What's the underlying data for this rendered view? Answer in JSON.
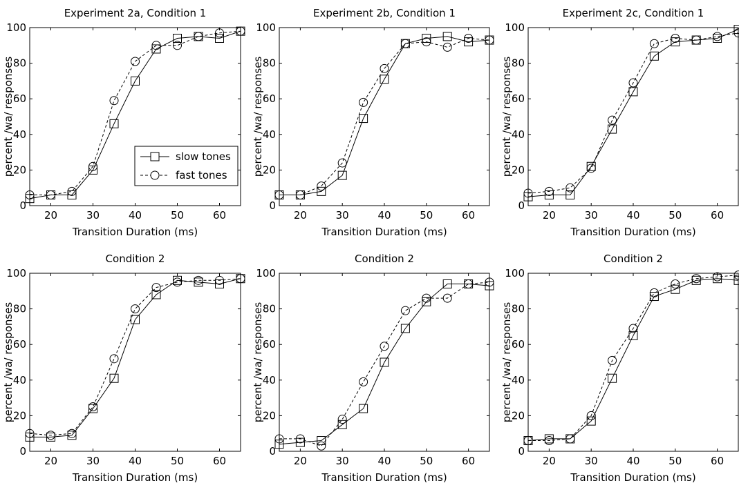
{
  "chart_data": [
    {
      "type": "line",
      "title": "Experiment 2a, Condition 1",
      "xlabel": "Transition Duration (ms)",
      "ylabel": "percent /wa/ responses",
      "xlim": [
        15,
        65
      ],
      "ylim": [
        0,
        100
      ],
      "xticks": [
        20,
        30,
        40,
        50,
        60
      ],
      "yticks": [
        0,
        20,
        40,
        60,
        80,
        100
      ],
      "grid": false,
      "legend": "center-right",
      "x": [
        15,
        20,
        25,
        30,
        35,
        40,
        45,
        50,
        55,
        60,
        65
      ],
      "series": [
        {
          "name": "slow tones",
          "marker": "square",
          "line": "solid",
          "values": [
            4,
            6,
            6,
            20,
            46,
            70,
            88,
            94,
            95,
            94,
            98
          ]
        },
        {
          "name": "fast tones",
          "marker": "circle",
          "line": "dashed",
          "values": [
            6,
            6,
            8,
            22,
            59,
            81,
            90,
            90,
            95,
            97,
            98
          ]
        }
      ]
    },
    {
      "type": "line",
      "title": "Experiment 2b, Condition 1",
      "xlabel": "Transition Duration (ms)",
      "ylabel": "percent /wa/ responses",
      "xlim": [
        15,
        65
      ],
      "ylim": [
        0,
        100
      ],
      "xticks": [
        20,
        30,
        40,
        50,
        60
      ],
      "yticks": [
        0,
        20,
        40,
        60,
        80,
        100
      ],
      "grid": false,
      "x": [
        15,
        20,
        25,
        30,
        35,
        40,
        45,
        50,
        55,
        60,
        65
      ],
      "series": [
        {
          "name": "slow tones",
          "marker": "square",
          "line": "solid",
          "values": [
            6,
            6,
            8,
            17,
            49,
            71,
            91,
            94,
            95,
            92,
            93
          ]
        },
        {
          "name": "fast tones",
          "marker": "circle",
          "line": "dashed",
          "values": [
            6,
            6,
            11,
            24,
            58,
            77,
            91,
            92,
            89,
            94,
            93
          ]
        }
      ]
    },
    {
      "type": "line",
      "title": "Experiment 2c, Condition 1",
      "xlabel": "Transition Duration (ms)",
      "ylabel": "percent /wa/ responses",
      "xlim": [
        15,
        65
      ],
      "ylim": [
        0,
        100
      ],
      "xticks": [
        20,
        30,
        40,
        50,
        60
      ],
      "yticks": [
        0,
        20,
        40,
        60,
        80,
        100
      ],
      "grid": false,
      "x": [
        15,
        20,
        25,
        30,
        35,
        40,
        45,
        50,
        55,
        60,
        65
      ],
      "series": [
        {
          "name": "slow tones",
          "marker": "square",
          "line": "solid",
          "values": [
            5,
            6,
            6,
            22,
            43,
            64,
            84,
            92,
            93,
            94,
            99
          ]
        },
        {
          "name": "fast tones",
          "marker": "circle",
          "line": "dashed",
          "values": [
            7,
            8,
            10,
            21,
            48,
            69,
            91,
            94,
            93,
            95,
            97
          ]
        }
      ]
    },
    {
      "type": "line",
      "title": "Condition 2",
      "xlabel": "Transition Duration (ms)",
      "ylabel": "percent /wa/ responses",
      "xlim": [
        15,
        65
      ],
      "ylim": [
        0,
        100
      ],
      "xticks": [
        20,
        30,
        40,
        50,
        60
      ],
      "yticks": [
        0,
        20,
        40,
        60,
        80,
        100
      ],
      "grid": false,
      "x": [
        15,
        20,
        25,
        30,
        35,
        40,
        45,
        50,
        55,
        60,
        65
      ],
      "series": [
        {
          "name": "slow tones",
          "marker": "square",
          "line": "solid",
          "values": [
            8,
            8,
            9,
            24,
            41,
            74,
            88,
            96,
            95,
            94,
            97
          ]
        },
        {
          "name": "fast tones",
          "marker": "circle",
          "line": "dashed",
          "values": [
            10,
            9,
            10,
            25,
            52,
            80,
            92,
            95,
            96,
            96,
            97
          ]
        }
      ]
    },
    {
      "type": "line",
      "title": "Condition 2",
      "xlabel": "Transition Duration (ms)",
      "ylabel": "percent /wa/ responses",
      "xlim": [
        15,
        65
      ],
      "ylim": [
        0,
        100
      ],
      "xticks": [
        20,
        30,
        40,
        50,
        60
      ],
      "yticks": [
        0,
        20,
        40,
        60,
        80,
        100
      ],
      "grid": false,
      "x": [
        15,
        20,
        25,
        30,
        35,
        40,
        45,
        50,
        55,
        60,
        65
      ],
      "series": [
        {
          "name": "slow tones",
          "marker": "square",
          "line": "solid",
          "values": [
            4,
            5,
            6,
            15,
            24,
            50,
            69,
            84,
            94,
            94,
            93
          ]
        },
        {
          "name": "fast tones",
          "marker": "circle",
          "line": "dashed",
          "values": [
            7,
            7,
            3,
            18,
            39,
            59,
            79,
            86,
            86,
            94,
            95
          ]
        }
      ]
    },
    {
      "type": "line",
      "title": "Condition 2",
      "xlabel": "Transition Duration (ms)",
      "ylabel": "percent /wa/ responses",
      "xlim": [
        15,
        65
      ],
      "ylim": [
        0,
        100
      ],
      "xticks": [
        20,
        30,
        40,
        50,
        60
      ],
      "yticks": [
        0,
        20,
        40,
        60,
        80,
        100
      ],
      "grid": false,
      "x": [
        15,
        20,
        25,
        30,
        35,
        40,
        45,
        50,
        55,
        60,
        65
      ],
      "series": [
        {
          "name": "slow tones",
          "marker": "square",
          "line": "solid",
          "values": [
            6,
            7,
            7,
            17,
            41,
            65,
            87,
            91,
            96,
            97,
            96
          ]
        },
        {
          "name": "fast tones",
          "marker": "circle",
          "line": "dashed",
          "values": [
            6,
            6,
            7,
            20,
            51,
            69,
            89,
            94,
            97,
            98,
            99
          ]
        }
      ]
    }
  ]
}
